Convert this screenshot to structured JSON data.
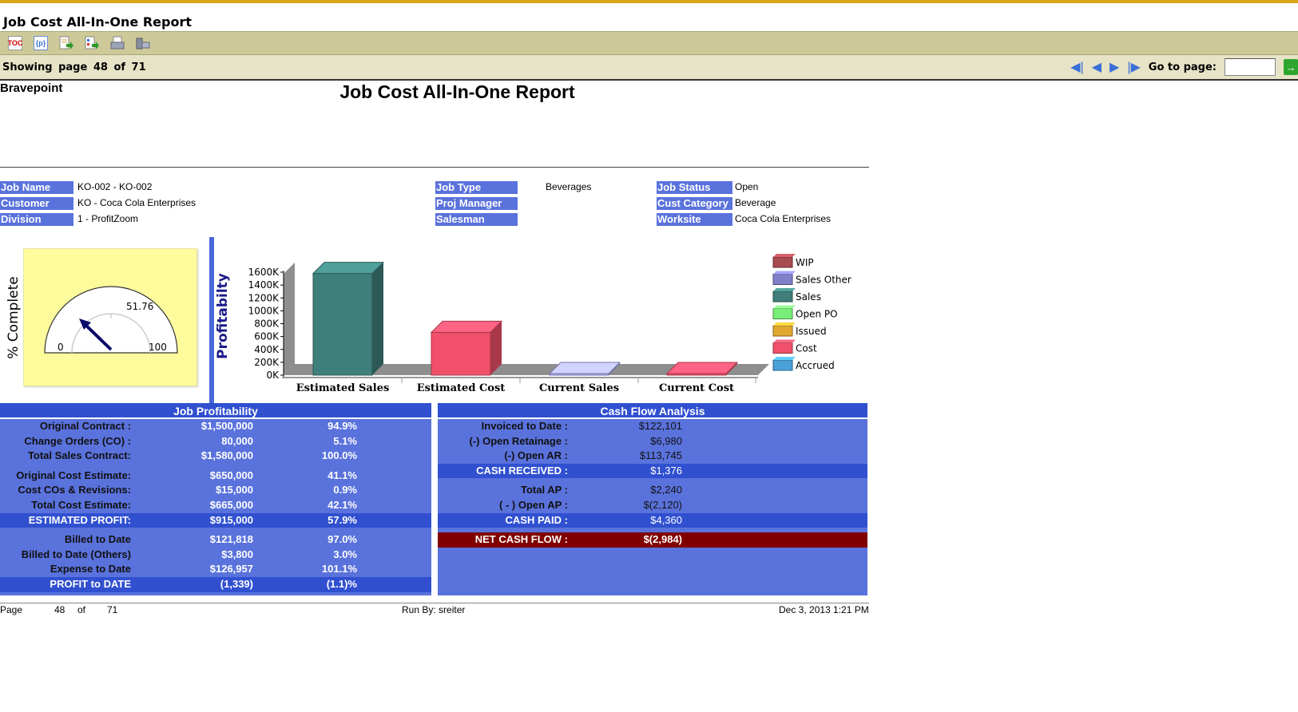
{
  "app": {
    "title": "Job Cost All-In-One Report"
  },
  "toolbar": {
    "icons": [
      "toc-icon",
      "parameters-icon",
      "export-data-icon",
      "export-report-icon",
      "print-icon",
      "print-server-icon"
    ],
    "toc_label": "TOC",
    "param_label": "{p}"
  },
  "pager": {
    "showing": "Showing page  48  of  71",
    "goto_label": "Go to page:",
    "goto_value": "",
    "go_label": "→"
  },
  "report": {
    "company": "Bravepoint",
    "title": "Job Cost All-In-One Report",
    "fields": [
      {
        "label": "Job  Name",
        "value": "KO-002 - KO-002"
      },
      {
        "label": "Customer",
        "value": "KO  - Coca Cola Enterprises"
      },
      {
        "label": "Division",
        "value": "1  - ProfitZoom"
      },
      {
        "label": "Job Type",
        "value": "Beverages"
      },
      {
        "label": "Proj Manager",
        "value": ""
      },
      {
        "label": "Salesman",
        "value": ""
      },
      {
        "label": "Job Status",
        "value": "Open"
      },
      {
        "label": "Cust Category",
        "value": "Beverage"
      },
      {
        "label": "Worksite",
        "value": "Coca Cola Enterprises"
      }
    ],
    "gauge": {
      "label": "% Complete",
      "value": "51.76",
      "min": "0",
      "max": "100"
    }
  },
  "chart_data": {
    "type": "bar",
    "ylabel": "Profitabilty",
    "ylim": [
      0,
      1600000
    ],
    "yticks": [
      "0K",
      "200K",
      "400K",
      "600K",
      "800K",
      "1000K",
      "1200K",
      "1400K",
      "1600K"
    ],
    "categories": [
      "Estimated Sales",
      "Estimated Cost",
      "Current Sales",
      "Current Cost"
    ],
    "values": [
      1580000,
      665000,
      0,
      0
    ],
    "colors": [
      "#3f7f7b",
      "#f0506a",
      "#a8a8f0",
      "#f0506a"
    ],
    "legend": [
      {
        "name": "WIP",
        "color": "#a84a50"
      },
      {
        "name": "Sales Other",
        "color": "#8080c8"
      },
      {
        "name": "Sales",
        "color": "#3f7f7b"
      },
      {
        "name": "Open PO",
        "color": "#78ee78"
      },
      {
        "name": "Issued",
        "color": "#e0a830"
      },
      {
        "name": "Cost",
        "color": "#f0506a"
      },
      {
        "name": "Accrued",
        "color": "#4aa0d8"
      }
    ],
    "legend_position": "right"
  },
  "profitability": {
    "title": "Job Profitability",
    "rows": [
      {
        "label": "Original Contract :",
        "value": "$1,500,000",
        "pct": "94.9%"
      },
      {
        "label": "Change Orders (CO) :",
        "value": "80,000",
        "pct": "5.1%"
      },
      {
        "label": "Total Sales Contract:",
        "value": "$1,580,000",
        "pct": "100.0%"
      },
      {
        "label": "Original Cost Estimate:",
        "value": "$650,000",
        "pct": "41.1%"
      },
      {
        "label": "Cost COs & Revisions:",
        "value": "$15,000",
        "pct": "0.9%"
      },
      {
        "label": "Total Cost Estimate:",
        "value": "$665,000",
        "pct": "42.1%"
      },
      {
        "label": "ESTIMATED PROFIT:",
        "value": "$915,000",
        "pct": "57.9%"
      },
      {
        "label": "Billed to Date",
        "value": "$121,818",
        "pct": "97.0%"
      },
      {
        "label": "Billed to Date (Others)",
        "value": "$3,800",
        "pct": "3.0%"
      },
      {
        "label": "Expense to Date",
        "value": "$126,957",
        "pct": "101.1%"
      },
      {
        "label": "PROFIT to DATE",
        "value": "(1,339)",
        "pct": "(1.1)%"
      }
    ]
  },
  "cashflow": {
    "title": "Cash Flow Analysis",
    "rows": [
      {
        "label": "Invoiced to Date :",
        "value": "$122,101"
      },
      {
        "label": "(-) Open Retainage :",
        "value": "$6,980"
      },
      {
        "label": "(-) Open AR :",
        "value": "$113,745"
      },
      {
        "label": "CASH RECEIVED :",
        "value": "$1,376"
      },
      {
        "label": "Total AP :",
        "value": "$2,240"
      },
      {
        "label": "( - ) Open AP :",
        "value": "$(2,120)"
      },
      {
        "label": "CASH PAID :",
        "value": "$4,360"
      },
      {
        "label": "NET CASH FLOW :",
        "value": "$(2,984)"
      }
    ]
  },
  "footer": {
    "page_label": "Page",
    "page": "48",
    "of": "of",
    "total": "71",
    "run_by": "Run By: sreiter",
    "timestamp": "Dec 3, 2013 1:21 PM"
  }
}
